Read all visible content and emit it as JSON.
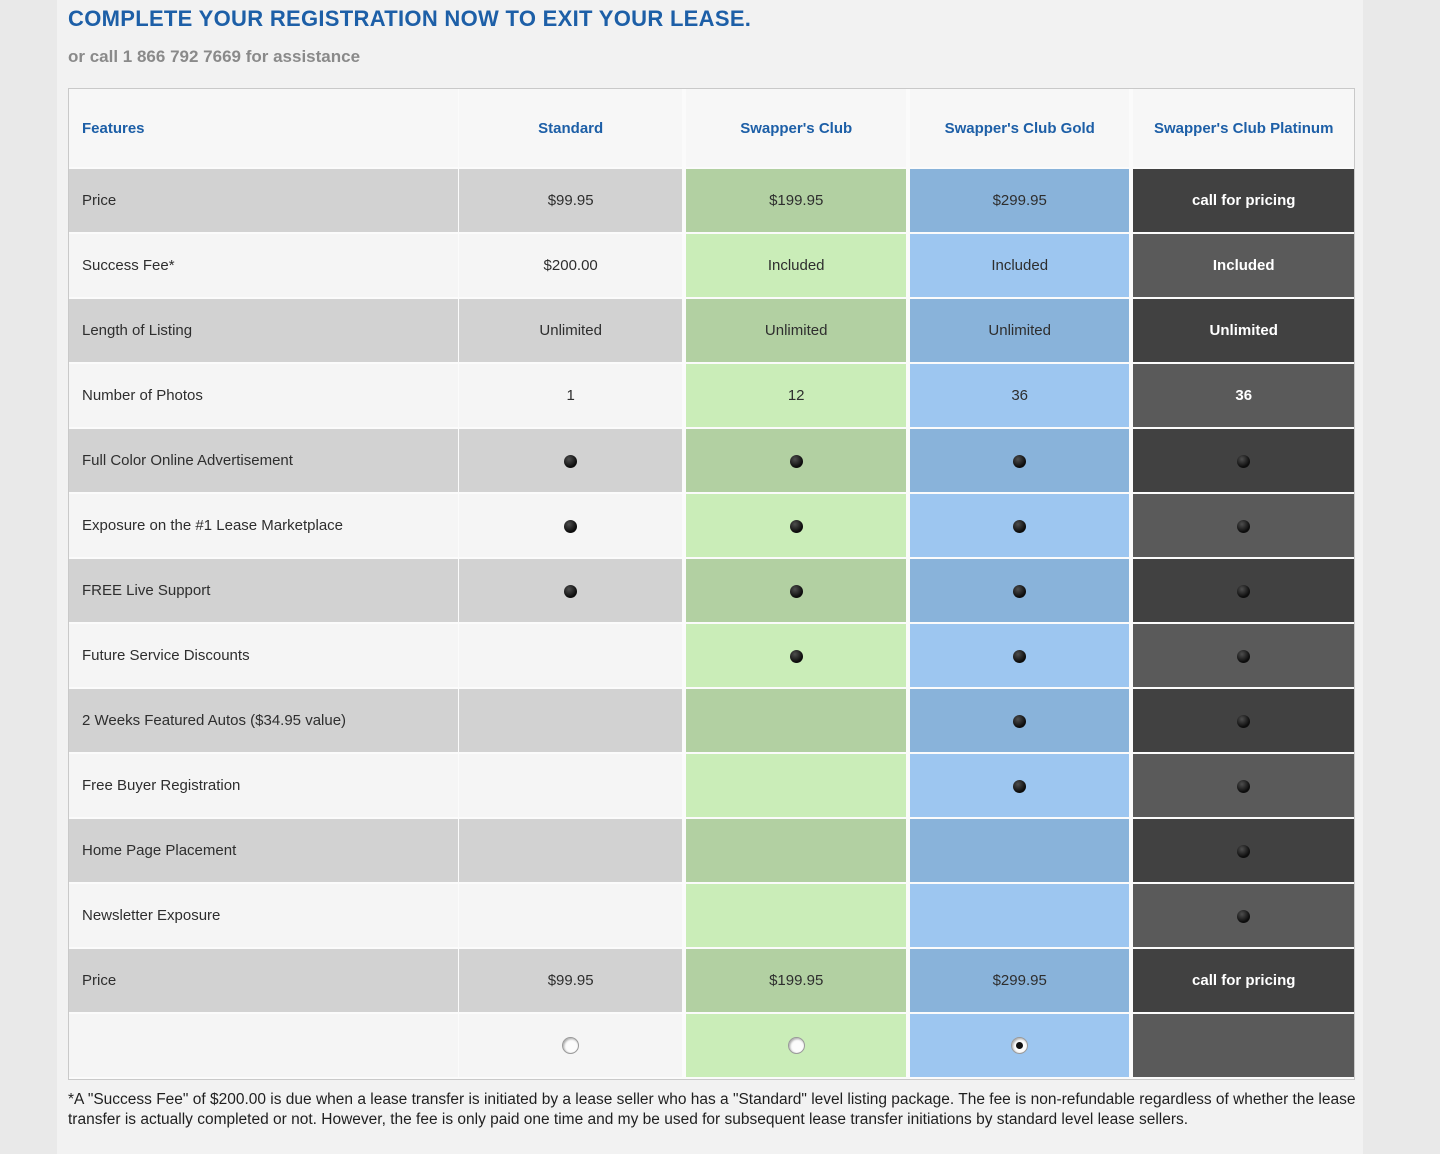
{
  "page": {
    "title": "COMPLETE YOUR REGISTRATION NOW TO EXIT YOUR LEASE.",
    "subtitle": "or call 1 866 792 7669 for assistance",
    "footnote": "*A \"Success Fee\" of $200.00 is due when a lease transfer is initiated by a lease seller who has a \"Standard\" level listing package. The fee is non-refundable regardless of whether the lease transfer is actually completed or not. However, the fee is only paid one time and my be used for subsequent lease transfer initiations by standard level lease sellers."
  },
  "colors": {
    "accent_blue": "#1d5fa7",
    "subtitle_gray": "#8a8a8a",
    "header_bg": "#f7f7f7",
    "row_dark_gray": "#d2d2d2",
    "row_light_gray": "#f5f5f5",
    "club_green_dark": "#b2d0a2",
    "club_green_light": "#caedb8",
    "gold_blue_dark": "#89b3da",
    "gold_blue_light": "#9dc6f0",
    "platinum_dark": "#414141",
    "platinum_light": "#5a5a5a"
  },
  "table": {
    "columns": [
      {
        "key": "features",
        "label": "Features"
      },
      {
        "key": "standard",
        "label": "Standard"
      },
      {
        "key": "club",
        "label": "Swapper's Club"
      },
      {
        "key": "gold",
        "label": "Swapper's Club Gold"
      },
      {
        "key": "platinum",
        "label": "Swapper's Club Platinum"
      }
    ],
    "dot_marker": "●",
    "rows": [
      {
        "feature": "Price",
        "values": [
          "$99.95",
          "$199.95",
          "$299.95",
          "call for pricing"
        ]
      },
      {
        "feature": "Success Fee*",
        "values": [
          "$200.00",
          "Included",
          "Included",
          "Included"
        ]
      },
      {
        "feature": "Length of Listing",
        "values": [
          "Unlimited",
          "Unlimited",
          "Unlimited",
          "Unlimited"
        ]
      },
      {
        "feature": "Number of Photos",
        "values": [
          "1",
          "12",
          "36",
          "36"
        ]
      },
      {
        "feature": "Full Color Online Advertisement",
        "values": [
          "●",
          "●",
          "●",
          "●"
        ]
      },
      {
        "feature": "Exposure on the #1 Lease Marketplace",
        "values": [
          "●",
          "●",
          "●",
          "●"
        ]
      },
      {
        "feature": "FREE Live Support",
        "values": [
          "●",
          "●",
          "●",
          "●"
        ]
      },
      {
        "feature": "Future Service Discounts",
        "values": [
          "",
          "●",
          "●",
          "●"
        ]
      },
      {
        "feature": "2 Weeks Featured Autos ($34.95 value)",
        "values": [
          "",
          "",
          "●",
          "●"
        ]
      },
      {
        "feature": "Free Buyer Registration",
        "values": [
          "",
          "",
          "●",
          "●"
        ]
      },
      {
        "feature": "Home Page Placement",
        "values": [
          "",
          "",
          "",
          "●"
        ]
      },
      {
        "feature": "Newsletter Exposure",
        "values": [
          "",
          "",
          "",
          "●"
        ]
      },
      {
        "feature": "Price",
        "values": [
          "$99.95",
          "$199.95",
          "$299.95",
          "call for pricing"
        ]
      }
    ],
    "radio_row": {
      "standard": "unselected",
      "club": "unselected",
      "gold": "selected",
      "platinum": "none"
    }
  }
}
